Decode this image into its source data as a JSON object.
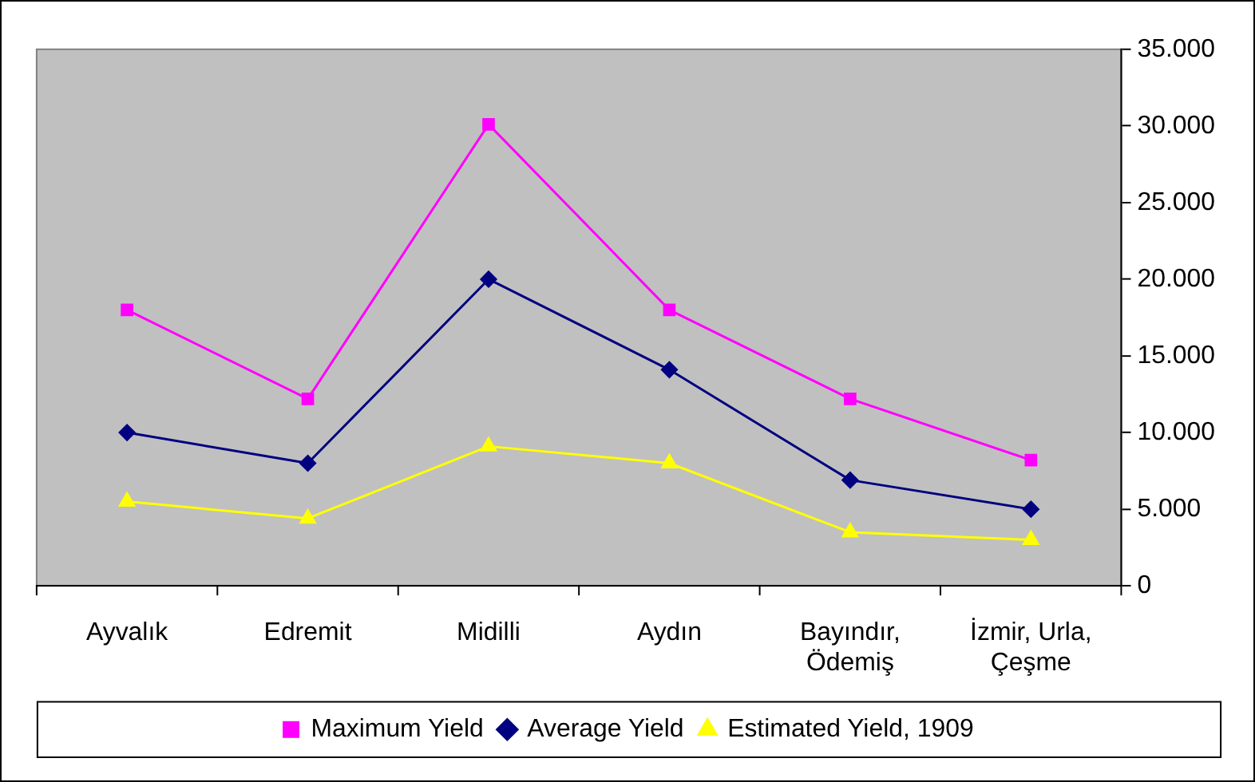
{
  "chart_data": {
    "type": "line",
    "categories": [
      "Ayvalık",
      "Edremit",
      "Midilli",
      "Aydın",
      "Bayındır,\nÖdemiş",
      "İzmir, Urla,\nÇeşme"
    ],
    "series": [
      {
        "name": "Maximum Yield",
        "color": "#ff00ff",
        "marker": "square",
        "values": [
          18000,
          12200,
          30100,
          18000,
          12200,
          8200
        ]
      },
      {
        "name": "Average Yield",
        "color": "#000080",
        "marker": "diamond",
        "values": [
          10000,
          8000,
          20000,
          14100,
          6900,
          5000
        ]
      },
      {
        "name": "Estimated Yield, 1909",
        "color": "#ffff00",
        "marker": "triangle",
        "values": [
          5500,
          4400,
          9100,
          8000,
          3500,
          3000
        ]
      }
    ],
    "ylim": [
      0,
      35000
    ],
    "yticks": [
      0,
      {
        "value": 5000,
        "label": "5.000"
      },
      {
        "value": 10000,
        "label": "10.000"
      },
      {
        "value": 15000,
        "label": "15.000"
      },
      {
        "value": 20000,
        "label": "20.000"
      },
      {
        "value": 25000,
        "label": "25.000"
      },
      {
        "value": 30000,
        "label": "30.000"
      },
      {
        "value": 35000,
        "label": "35.000"
      }
    ],
    "grid": false,
    "legend": "bottom"
  }
}
